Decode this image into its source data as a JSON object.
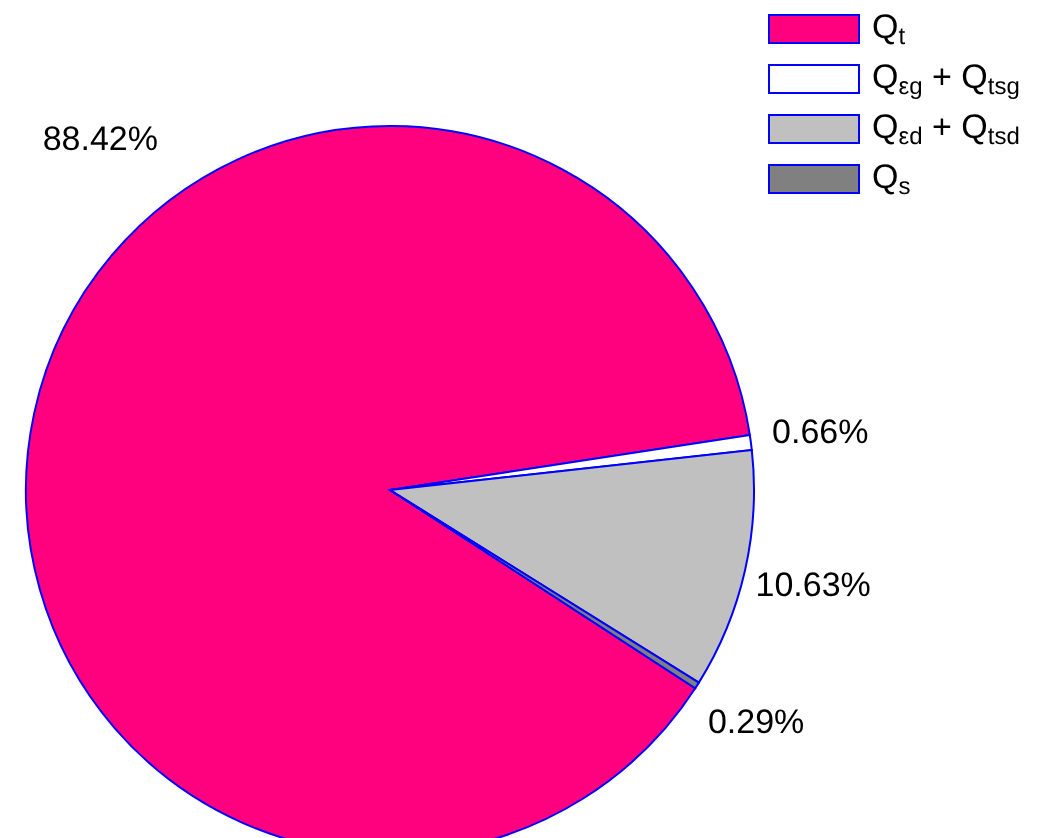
{
  "chart_data": {
    "type": "pie",
    "categories": [
      "Q$_{t}$",
      "Q$_{εg}$ + Q$_{tsg}$",
      "Q$_{εd}$ + Q$_{tsd}$",
      "Q$_{s}$"
    ],
    "values": [
      88.42,
      0.66,
      10.63,
      0.29
    ],
    "value_labels": [
      "88.42%",
      "0.66%",
      "10.63%",
      "0.29%"
    ],
    "colors": [
      "#ff007f",
      "#ffffff",
      "#c0c0c0",
      "#808080"
    ],
    "legend": "top right"
  }
}
